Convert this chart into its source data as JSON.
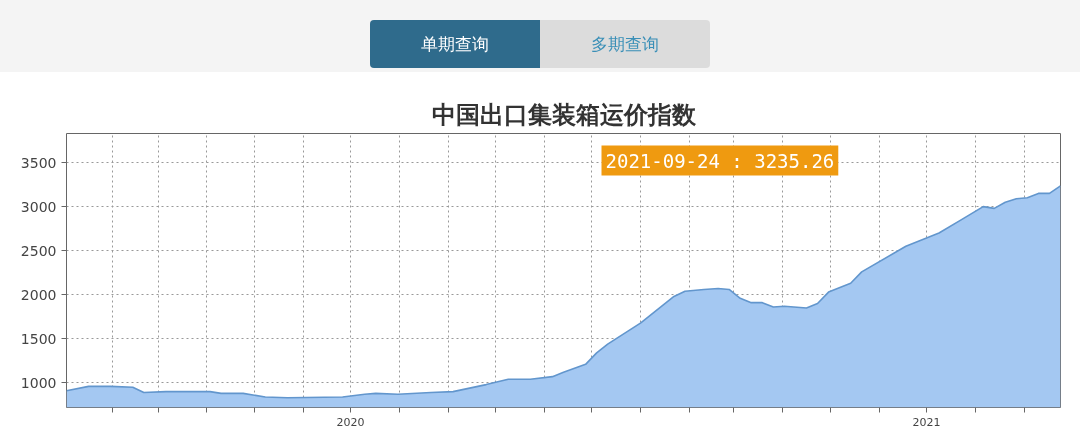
{
  "chart_data": {
    "type": "area",
    "title": "中国出口集装箱运价指数",
    "annotations": [
      "单期查询",
      "多期查询",
      "2021-09-24 : 3235.26"
    ],
    "x": [
      "2020-01-03",
      "2020-01-17",
      "2020-01-31",
      "2020-02-14",
      "2020-02-21",
      "2020-03-06",
      "2020-04-03",
      "2020-04-10",
      "2020-04-24",
      "2020-05-08",
      "2020-05-22",
      "2020-06-26",
      "2020-07-10",
      "2020-07-17",
      "2020-07-31",
      "2020-08-21",
      "2020-09-04",
      "2020-09-25",
      "2020-10-09",
      "2020-10-23",
      "2020-11-06",
      "2020-11-13",
      "2020-11-27",
      "2020-12-04",
      "2020-12-11",
      "2021-01-01",
      "2021-01-22",
      "2021-01-29",
      "2021-02-10",
      "2021-02-19",
      "2021-02-26",
      "2021-03-05",
      "2021-03-12",
      "2021-03-19",
      "2021-03-26",
      "2021-04-02",
      "2021-04-16",
      "2021-04-23",
      "2021-04-30",
      "2021-05-14",
      "2021-05-21",
      "2021-06-18",
      "2021-07-09",
      "2021-07-23",
      "2021-08-06",
      "2021-08-13",
      "2021-08-20",
      "2021-08-27",
      "2021-09-03",
      "2021-09-10",
      "2021-09-17",
      "2021-09-24"
    ],
    "series": [
      {
        "color": "#a4c8f2",
        "values": [
          910,
          960,
          960,
          950,
          890,
          900,
          900,
          880,
          880,
          840,
          830,
          840,
          870,
          880,
          870,
          890,
          900,
          980,
          1040,
          1040,
          1070,
          1120,
          1210,
          1340,
          1440,
          1680,
          1980,
          2040,
          2060,
          2070,
          2060,
          1960,
          1910,
          1910,
          1860,
          1870,
          1850,
          1900,
          2030,
          2130,
          2260,
          2550,
          2700,
          2850,
          3000,
          2980,
          3050,
          3090,
          3100,
          3150,
          3150,
          3235.26
        ]
      }
    ],
    "xlim": [
      "2020-01-03",
      "2021-09-24"
    ],
    "ylim": [
      720,
      3830
    ],
    "xticks": [
      {
        "value": "2020-02-01",
        "label": null
      },
      {
        "value": "2020-03-01",
        "label": null
      },
      {
        "value": "2020-04-01",
        "label": null
      },
      {
        "value": "2020-05-01",
        "label": null
      },
      {
        "value": "2020-06-01",
        "label": null
      },
      {
        "value": "2020-07-01",
        "label": "2020"
      },
      {
        "value": "2020-08-01",
        "label": null
      },
      {
        "value": "2020-09-01",
        "label": null
      },
      {
        "value": "2020-10-01",
        "label": null
      },
      {
        "value": "2020-11-01",
        "label": null
      },
      {
        "value": "2020-12-01",
        "label": null
      },
      {
        "value": "2021-01-01",
        "label": null
      },
      {
        "value": "2021-02-01",
        "label": null
      },
      {
        "value": "2021-03-01",
        "label": null
      },
      {
        "value": "2021-04-01",
        "label": null
      },
      {
        "value": "2021-05-01",
        "label": null
      },
      {
        "value": "2021-06-01",
        "label": null
      },
      {
        "value": "2021-07-01",
        "label": "2021"
      },
      {
        "value": "2021-08-01",
        "label": null
      },
      {
        "value": "2021-09-01",
        "label": null
      }
    ],
    "yticks": [
      1000,
      1500,
      2000,
      2500,
      3000,
      3500
    ],
    "grid": true
  }
}
